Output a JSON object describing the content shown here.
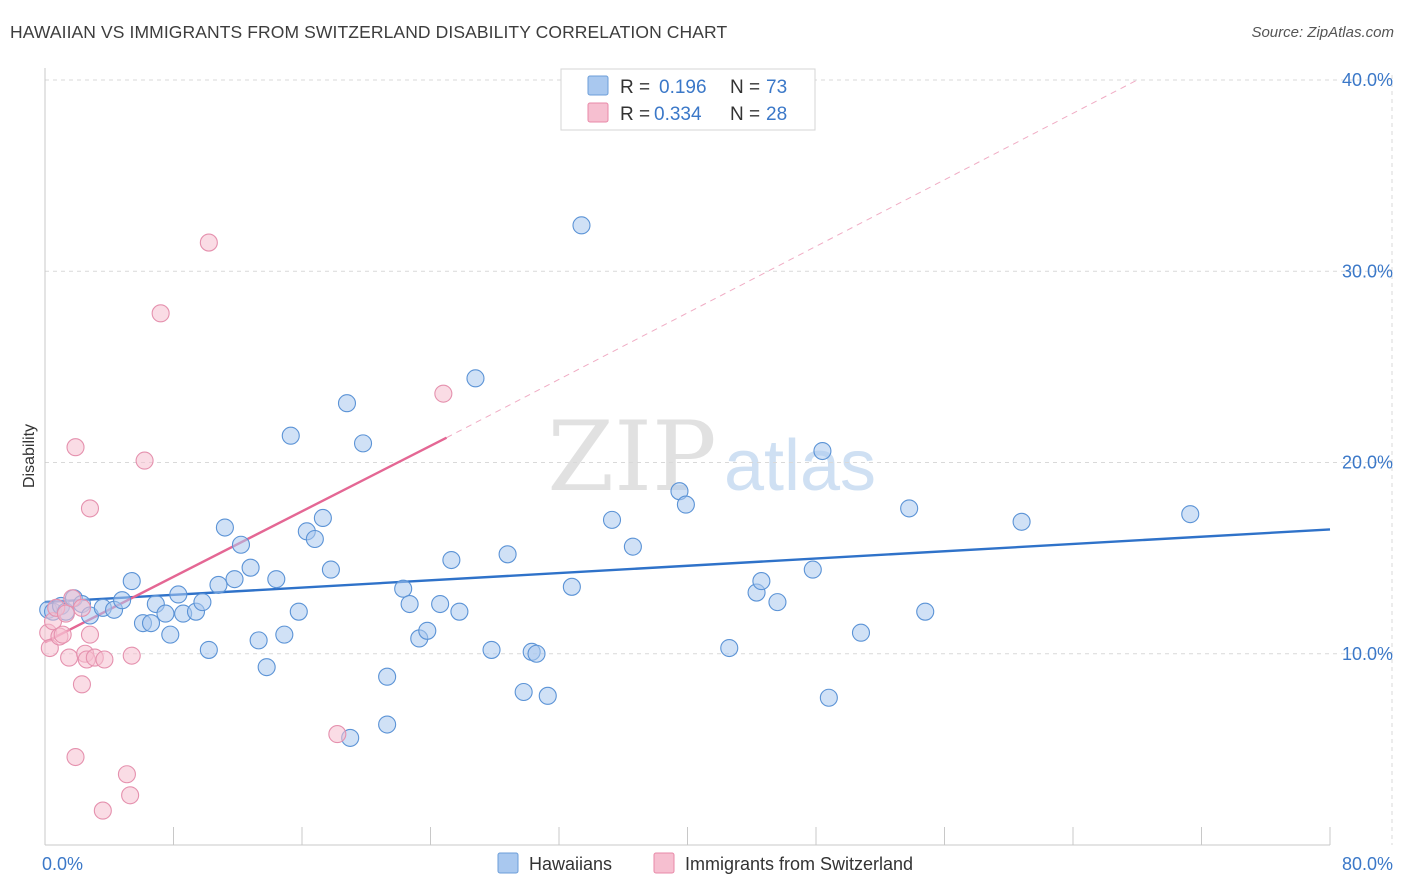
{
  "title": "HAWAIIAN VS IMMIGRANTS FROM SWITZERLAND DISABILITY CORRELATION CHART",
  "source": "Source: ZipAtlas.com",
  "watermark": {
    "zip": "ZIP",
    "atlas": "atlas"
  },
  "legend": {
    "r_label": "R =",
    "n_label": "N =",
    "rows": [
      {
        "r": "0.196",
        "n": "73",
        "color": "#a9c8ef",
        "stroke": "#6c9ed8"
      },
      {
        "r": "0.334",
        "n": "28",
        "color": "#f6bfd0",
        "stroke": "#e88aa8"
      }
    ]
  },
  "bottom_legend": [
    "Hawaiians",
    "Immigrants from Switzerland"
  ],
  "chart_data": {
    "type": "scatter",
    "title": "HAWAIIAN VS IMMIGRANTS FROM SWITZERLAND DISABILITY CORRELATION CHART",
    "xlabel": "",
    "ylabel": "Disability",
    "xlim": [
      0,
      80
    ],
    "ylim": [
      0,
      40
    ],
    "x_tick_labels": [
      "0.0%",
      "80.0%"
    ],
    "y_ticks": [
      10,
      20,
      30,
      40
    ],
    "y_tick_labels": [
      "10.0%",
      "20.0%",
      "30.0%",
      "40.0%"
    ],
    "grid": true,
    "series": [
      {
        "name": "Hawaiians",
        "color": "#a9c8ef",
        "stroke": "#5b93d6",
        "line_color": "#2f72c9",
        "trend": {
          "x": [
            0,
            80
          ],
          "y": [
            12.7,
            16.5
          ],
          "dashed_extension": false
        },
        "points": [
          [
            0.2,
            12.3
          ],
          [
            0.5,
            12.2
          ],
          [
            1.0,
            12.5
          ],
          [
            1.3,
            12.2
          ],
          [
            1.8,
            12.9
          ],
          [
            2.3,
            12.6
          ],
          [
            2.8,
            12.0
          ],
          [
            3.6,
            12.4
          ],
          [
            4.3,
            12.3
          ],
          [
            4.8,
            12.8
          ],
          [
            5.4,
            13.8
          ],
          [
            6.1,
            11.6
          ],
          [
            6.6,
            11.6
          ],
          [
            6.9,
            12.6
          ],
          [
            7.5,
            12.1
          ],
          [
            7.8,
            11.0
          ],
          [
            8.3,
            13.1
          ],
          [
            8.6,
            12.1
          ],
          [
            9.4,
            12.2
          ],
          [
            9.8,
            12.7
          ],
          [
            10.2,
            10.2
          ],
          [
            10.8,
            13.6
          ],
          [
            11.2,
            16.6
          ],
          [
            11.8,
            13.9
          ],
          [
            12.2,
            15.7
          ],
          [
            12.8,
            14.5
          ],
          [
            13.3,
            10.7
          ],
          [
            13.8,
            9.3
          ],
          [
            14.4,
            13.9
          ],
          [
            14.9,
            11.0
          ],
          [
            15.3,
            21.4
          ],
          [
            15.8,
            12.2
          ],
          [
            16.3,
            16.4
          ],
          [
            16.8,
            16.0
          ],
          [
            17.3,
            17.1
          ],
          [
            17.8,
            14.4
          ],
          [
            18.8,
            23.1
          ],
          [
            19.8,
            21.0
          ],
          [
            19.0,
            5.6
          ],
          [
            21.3,
            8.8
          ],
          [
            21.3,
            6.3
          ],
          [
            22.3,
            13.4
          ],
          [
            22.7,
            12.6
          ],
          [
            23.3,
            10.8
          ],
          [
            23.8,
            11.2
          ],
          [
            24.6,
            12.6
          ],
          [
            25.3,
            14.9
          ],
          [
            25.8,
            12.2
          ],
          [
            26.8,
            24.4
          ],
          [
            27.8,
            10.2
          ],
          [
            28.8,
            15.2
          ],
          [
            29.8,
            8.0
          ],
          [
            30.3,
            10.1
          ],
          [
            30.6,
            10.0
          ],
          [
            31.3,
            7.8
          ],
          [
            32.8,
            13.5
          ],
          [
            33.4,
            32.4
          ],
          [
            35.3,
            17.0
          ],
          [
            36.6,
            15.6
          ],
          [
            39.5,
            18.5
          ],
          [
            39.9,
            17.8
          ],
          [
            42.6,
            10.3
          ],
          [
            44.3,
            13.2
          ],
          [
            44.6,
            13.8
          ],
          [
            45.6,
            12.7
          ],
          [
            47.8,
            14.4
          ],
          [
            48.4,
            20.6
          ],
          [
            48.8,
            7.7
          ],
          [
            50.8,
            11.1
          ],
          [
            53.8,
            17.6
          ],
          [
            54.8,
            12.2
          ],
          [
            60.8,
            16.9
          ],
          [
            71.3,
            17.3
          ]
        ]
      },
      {
        "name": "Immigrants from Switzerland",
        "color": "#f6bfd0",
        "stroke": "#e591ae",
        "line_color": "#e46794",
        "trend": {
          "x": [
            0,
            25
          ],
          "y": [
            10.6,
            21.3
          ],
          "dashed_extension": true,
          "dashed_to": [
            68,
            40
          ]
        },
        "points": [
          [
            0.2,
            11.1
          ],
          [
            0.3,
            10.3
          ],
          [
            0.5,
            11.7
          ],
          [
            0.7,
            12.4
          ],
          [
            0.9,
            10.9
          ],
          [
            1.1,
            11.0
          ],
          [
            1.3,
            12.1
          ],
          [
            1.5,
            9.8
          ],
          [
            1.7,
            12.9
          ],
          [
            1.9,
            20.8
          ],
          [
            1.9,
            4.6
          ],
          [
            2.3,
            12.4
          ],
          [
            2.3,
            8.4
          ],
          [
            2.5,
            10.0
          ],
          [
            2.6,
            9.7
          ],
          [
            2.8,
            11.0
          ],
          [
            2.8,
            17.6
          ],
          [
            3.1,
            9.8
          ],
          [
            3.6,
            1.8
          ],
          [
            3.7,
            9.7
          ],
          [
            5.1,
            3.7
          ],
          [
            5.3,
            2.6
          ],
          [
            5.4,
            9.9
          ],
          [
            6.2,
            20.1
          ],
          [
            7.2,
            27.8
          ],
          [
            10.2,
            31.5
          ],
          [
            18.2,
            5.8
          ],
          [
            24.8,
            23.6
          ]
        ]
      }
    ]
  }
}
